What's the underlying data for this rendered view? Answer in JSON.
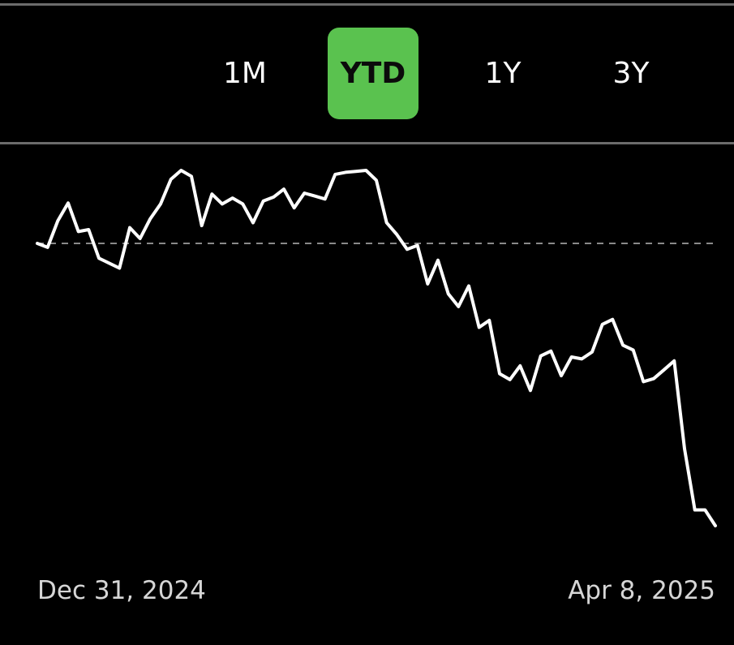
{
  "range_selector": {
    "tabs": [
      {
        "label": "1M",
        "active": false
      },
      {
        "label": "YTD",
        "active": true
      },
      {
        "label": "1Y",
        "active": false
      },
      {
        "label": "3Y",
        "active": false
      }
    ],
    "active_color": "#5ac24f"
  },
  "chart_data": {
    "type": "line",
    "line_color": "#ffffff",
    "baseline_color": "#8a8a8a",
    "baseline_value": 100,
    "start_label": "Dec 31, 2024",
    "end_label": "Apr 8, 2025",
    "series": [
      {
        "values": [
          100.0,
          99.6,
          102.3,
          104.1,
          101.2,
          101.4,
          98.5,
          98.0,
          97.5,
          101.6,
          100.5,
          102.5,
          104.0,
          106.5,
          107.4,
          106.8,
          101.8,
          105.0,
          104.0,
          104.6,
          104.0,
          102.1,
          104.3,
          104.7,
          105.5,
          103.6,
          105.1,
          104.8,
          104.5,
          107.0,
          107.2,
          107.3,
          107.4,
          106.4,
          102.1,
          100.9,
          99.4,
          99.8,
          95.9,
          98.3,
          94.9,
          93.6,
          95.7,
          91.5,
          92.2,
          86.8,
          86.2,
          87.6,
          85.1,
          88.6,
          89.1,
          86.6,
          88.5,
          88.3,
          89.0,
          91.8,
          92.3,
          89.7,
          89.2,
          86.0,
          86.3,
          87.2,
          88.1,
          79.2,
          73.0,
          73.0,
          71.4
        ]
      }
    ]
  }
}
